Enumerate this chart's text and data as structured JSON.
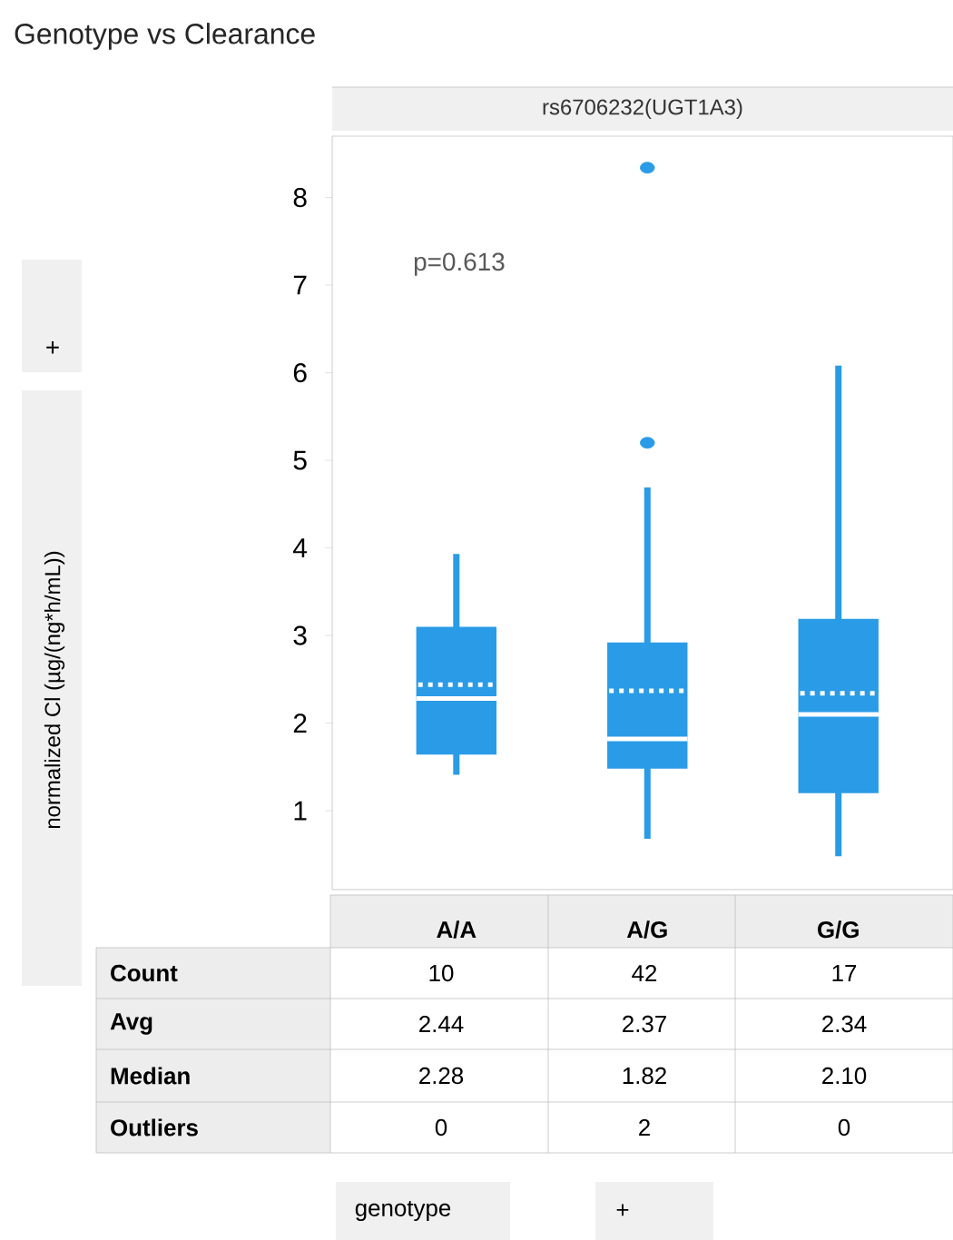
{
  "chart_data": {
    "type": "box",
    "title": "Genotype vs Clearance",
    "subtitle": "rs6706232(UGT1A3)",
    "categories": [
      "A/A",
      "A/G",
      "G/G"
    ],
    "color": "#2a9be6",
    "boxes": [
      {
        "low": 1.41,
        "q1": 1.64,
        "median": 2.28,
        "q3": 3.1,
        "high": 3.93,
        "mean": 2.44
      },
      {
        "low": 0.68,
        "q1": 1.48,
        "median": 1.82,
        "q3": 2.92,
        "high": 4.69,
        "mean": 2.37,
        "outliers": [
          5.2,
          8.34
        ]
      },
      {
        "low": 0.48,
        "q1": 1.2,
        "median": 2.1,
        "q3": 3.19,
        "high": 6.08,
        "mean": 2.34
      }
    ],
    "ylim": [
      0.1,
      8.7
    ],
    "yticks": [
      1,
      2,
      3,
      4,
      5,
      6,
      7,
      8
    ],
    "annotations": [
      "p=0.613",
      "Count",
      "Avg",
      "Median",
      "Outliers",
      "10",
      "42",
      "17",
      "2.44",
      "2.37",
      "2.34",
      "2.28",
      "1.82",
      "2.10",
      "0",
      "2",
      "0",
      "+",
      "+",
      "genotype",
      "normalized Cl (µg/(ng*h/mL))"
    ]
  }
}
